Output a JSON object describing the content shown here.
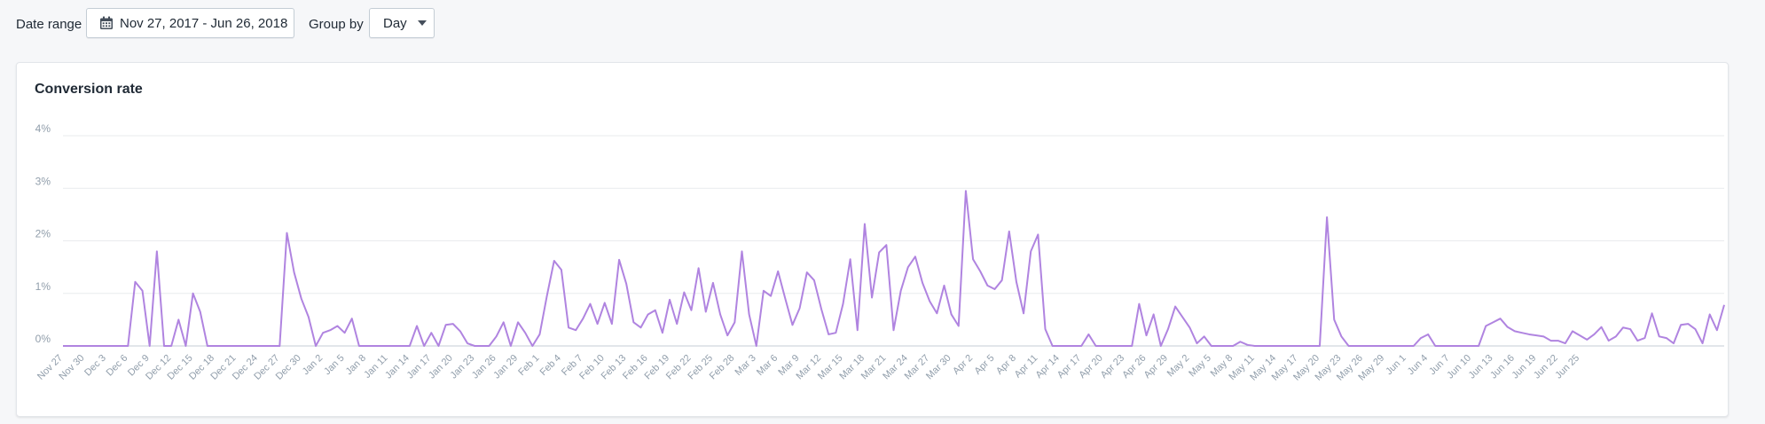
{
  "toolbar": {
    "date_range_label": "Date range",
    "date_range_value": "Nov 27, 2017 - Jun 26, 2018",
    "group_by_label": "Group by",
    "group_by_value": "Day"
  },
  "colors": {
    "line": "#b084e0",
    "grid": "#e9ebee",
    "text_muted": "#919eab"
  },
  "icons": {
    "calendar": "calendar-icon",
    "caret": "caret-down-icon"
  },
  "chart_data": {
    "type": "line",
    "title": "Conversion rate",
    "ylabel": "",
    "xlabel": "",
    "ylim": [
      0,
      4
    ],
    "yticks": [
      "0%",
      "1%",
      "2%",
      "3%",
      "4%"
    ],
    "x_tick_labels": [
      "Nov 27",
      "Nov 30",
      "Dec 3",
      "Dec 6",
      "Dec 9",
      "Dec 12",
      "Dec 15",
      "Dec 18",
      "Dec 21",
      "Dec 24",
      "Dec 27",
      "Dec 30",
      "Jan 2",
      "Jan 5",
      "Jan 8",
      "Jan 11",
      "Jan 14",
      "Jan 17",
      "Jan 20",
      "Jan 23",
      "Jan 26",
      "Jan 29",
      "Feb 1",
      "Feb 4",
      "Feb 7",
      "Feb 10",
      "Feb 13",
      "Feb 16",
      "Feb 19",
      "Feb 22",
      "Feb 25",
      "Feb 28",
      "Mar 3",
      "Mar 6",
      "Mar 9",
      "Mar 12",
      "Mar 15",
      "Mar 18",
      "Mar 21",
      "Mar 24",
      "Mar 27",
      "Mar 30",
      "Apr 2",
      "Apr 5",
      "Apr 8",
      "Apr 11",
      "Apr 14",
      "Apr 17",
      "Apr 20",
      "Apr 23",
      "Apr 26",
      "Apr 29",
      "May 2",
      "May 5",
      "May 8",
      "May 11",
      "May 14",
      "May 17",
      "May 20",
      "May 23",
      "May 26",
      "May 29",
      "Jun 1",
      "Jun 4",
      "Jun 7",
      "Jun 10",
      "Jun 13",
      "Jun 16",
      "Jun 19",
      "Jun 22",
      "Jun 25"
    ],
    "series": [
      {
        "name": "Conversion rate",
        "unit": "%",
        "values": [
          0,
          0,
          0,
          0,
          0,
          0,
          0,
          0,
          0,
          0,
          1.22,
          1.05,
          0,
          1.8,
          0,
          0,
          0.5,
          0,
          1.0,
          0.65,
          0,
          0,
          0,
          0,
          0,
          0,
          0,
          0,
          0,
          0,
          0,
          2.15,
          1.4,
          0.9,
          0.55,
          0,
          0.25,
          0.3,
          0.38,
          0.25,
          0.52,
          0,
          0,
          0,
          0,
          0,
          0,
          0,
          0,
          0.38,
          0,
          0.25,
          0,
          0.4,
          0.42,
          0.28,
          0.05,
          0,
          0,
          0,
          0.18,
          0.45,
          0,
          0.45,
          0.25,
          0,
          0.22,
          0.95,
          1.62,
          1.45,
          0.35,
          0.3,
          0.52,
          0.8,
          0.42,
          0.82,
          0.42,
          1.64,
          1.18,
          0.45,
          0.35,
          0.6,
          0.68,
          0.25,
          0.88,
          0.42,
          1.02,
          0.68,
          1.48,
          0.65,
          1.2,
          0.6,
          0.2,
          0.45,
          1.8,
          0.6,
          0,
          1.05,
          0.95,
          1.42,
          0.9,
          0.4,
          0.72,
          1.4,
          1.25,
          0.7,
          0.22,
          0.25,
          0.8,
          1.65,
          0.3,
          2.32,
          0.92,
          1.78,
          1.92,
          0.3,
          1.05,
          1.5,
          1.7,
          1.2,
          0.85,
          0.62,
          1.15,
          0.6,
          0.38,
          2.95,
          1.65,
          1.42,
          1.15,
          1.08,
          1.25,
          2.18,
          1.22,
          0.62,
          1.8,
          2.12,
          0.32,
          0,
          0,
          0,
          0,
          0,
          0.22,
          0,
          0,
          0,
          0,
          0,
          0,
          0.8,
          0.2,
          0.6,
          0,
          0.32,
          0.75,
          0.55,
          0.35,
          0.05,
          0.18,
          0,
          0,
          0,
          0,
          0.08,
          0.02,
          0,
          0,
          0,
          0,
          0,
          0,
          0,
          0,
          0,
          0,
          2.45,
          0.5,
          0.18,
          0,
          0,
          0,
          0,
          0,
          0,
          0,
          0,
          0,
          0,
          0.15,
          0.22,
          0,
          0,
          0,
          0,
          0,
          0,
          0,
          0.38,
          0.45,
          0.52,
          0.36,
          0.28,
          0.25,
          0.22,
          0.2,
          0.18,
          0.1,
          0.1,
          0.05,
          0.28,
          0.2,
          0.12,
          0.22,
          0.36,
          0.1,
          0.18,
          0.35,
          0.32,
          0.1,
          0.15,
          0.62,
          0.18,
          0.15,
          0.05,
          0.4,
          0.42,
          0.32,
          0.05,
          0.6,
          0.3,
          0.78
        ]
      }
    ]
  }
}
